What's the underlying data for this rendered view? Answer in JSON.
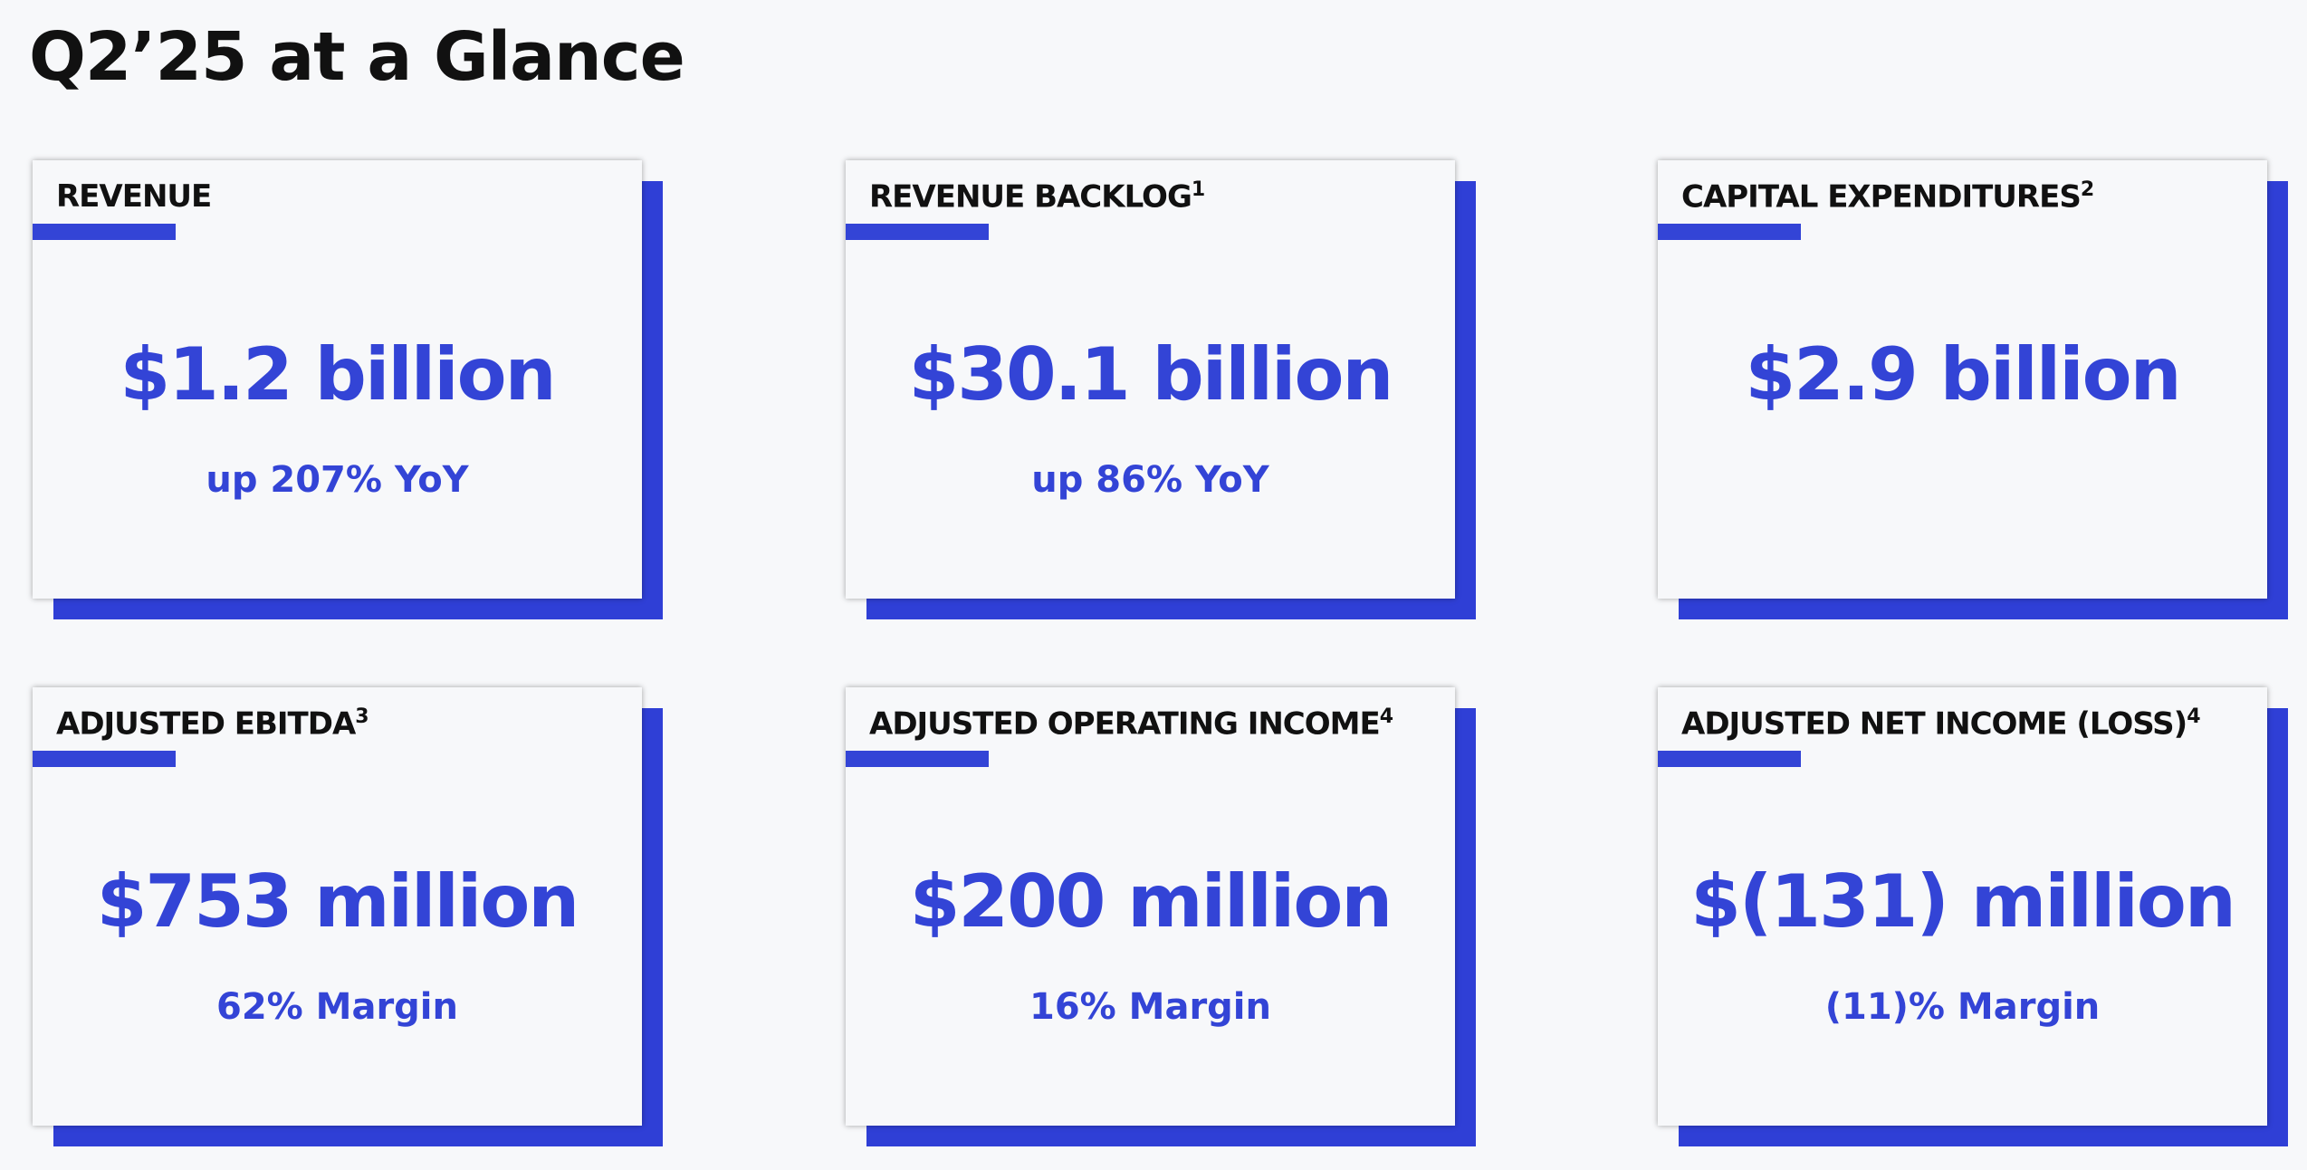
{
  "header": {
    "title": "Q2’25 at a Glance"
  },
  "cards": [
    {
      "label": "REVENUE",
      "value": "$1.2 billion",
      "sub": "up 207% YoY"
    },
    {
      "label": "REVENUE BACKLOG",
      "note": "1",
      "value": "$30.1 billion",
      "sub": "up 86% YoY"
    },
    {
      "label": "CAPITAL EXPENDITURES",
      "note": "2",
      "value": "$2.9 billion"
    },
    {
      "label": "ADJUSTED EBITDA",
      "note": "3",
      "value": "$753 million",
      "sub": "62% Margin"
    },
    {
      "label": "ADJUSTED OPERATING INCOME",
      "note": "4",
      "value": "$200 million",
      "sub": "16% Margin"
    },
    {
      "label": "ADJUSTED NET INCOME (LOSS)",
      "note": "4",
      "value": "$(131) million",
      "sub": "(11)% Margin"
    }
  ]
}
